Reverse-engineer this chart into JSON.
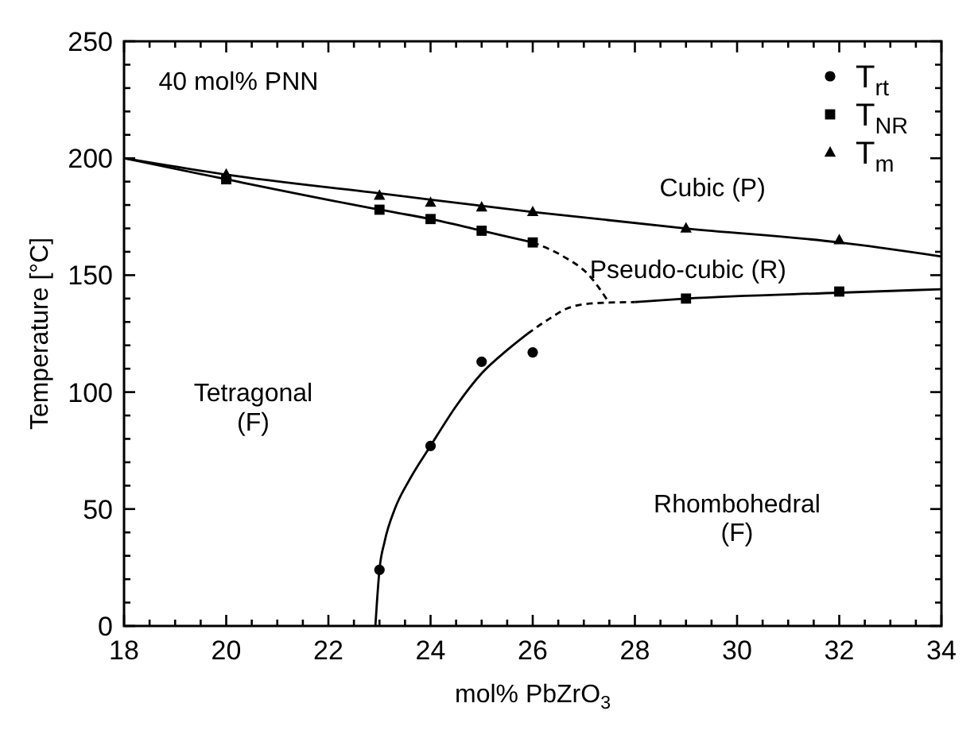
{
  "chart_data": {
    "type": "scatter",
    "xlabel": "mol% PbZrO$_{3}$",
    "ylabel": "Temperature [°C]",
    "xlim": [
      18,
      34
    ],
    "ylim": [
      0,
      250
    ],
    "xticks": [
      18,
      {
        "value": 18.5,
        "label": null
      },
      {
        "value": 19,
        "label": null
      },
      {
        "value": 19.5,
        "label": null
      },
      20,
      {
        "value": 20.5,
        "label": null
      },
      {
        "value": 21,
        "label": null
      },
      {
        "value": 21.5,
        "label": null
      },
      22,
      {
        "value": 22.5,
        "label": null
      },
      {
        "value": 23,
        "label": null
      },
      {
        "value": 23.5,
        "label": null
      },
      24,
      {
        "value": 24.5,
        "label": null
      },
      {
        "value": 25,
        "label": null
      },
      {
        "value": 25.5,
        "label": null
      },
      26,
      {
        "value": 26.5,
        "label": null
      },
      {
        "value": 27,
        "label": null
      },
      {
        "value": 27.5,
        "label": null
      },
      28,
      {
        "value": 28.5,
        "label": null
      },
      {
        "value": 29,
        "label": null
      },
      {
        "value": 29.5,
        "label": null
      },
      30,
      {
        "value": 30.5,
        "label": null
      },
      {
        "value": 31,
        "label": null
      },
      {
        "value": 31.5,
        "label": null
      },
      32,
      {
        "value": 32.5,
        "label": null
      },
      {
        "value": 33,
        "label": null
      },
      {
        "value": 33.5,
        "label": null
      },
      34
    ],
    "yticks": [
      0,
      {
        "value": 10,
        "label": null
      },
      {
        "value": 20,
        "label": null
      },
      {
        "value": 30,
        "label": null
      },
      {
        "value": 40,
        "label": null
      },
      50,
      {
        "value": 60,
        "label": null
      },
      {
        "value": 70,
        "label": null
      },
      {
        "value": 80,
        "label": null
      },
      {
        "value": 90,
        "label": null
      },
      100,
      {
        "value": 110,
        "label": null
      },
      {
        "value": 120,
        "label": null
      },
      {
        "value": 130,
        "label": null
      },
      {
        "value": 140,
        "label": null
      },
      150,
      {
        "value": 160,
        "label": null
      },
      {
        "value": 170,
        "label": null
      },
      {
        "value": 180,
        "label": null
      },
      {
        "value": 190,
        "label": null
      },
      200,
      {
        "value": 210,
        "label": null
      },
      {
        "value": 220,
        "label": null
      },
      {
        "value": 230,
        "label": null
      },
      {
        "value": 240,
        "label": null
      },
      250
    ],
    "grid": false,
    "legend": "top right",
    "series": [
      {
        "name": "T$_{rt}$",
        "marker": "circle",
        "color": "#000000",
        "x": [
          23,
          24,
          25,
          26
        ],
        "values": [
          24,
          77,
          113,
          117
        ]
      },
      {
        "name": "T$_{NR}$",
        "marker": "square",
        "color": "#000000",
        "x": [
          20,
          23,
          24,
          25,
          26,
          29,
          32
        ],
        "values": [
          191,
          178,
          174,
          169,
          164,
          140,
          143
        ]
      },
      {
        "name": "T$_{m}$",
        "marker": "triangle",
        "color": "#000000",
        "x": [
          20,
          23,
          24,
          25,
          26,
          29,
          32
        ],
        "values": [
          193,
          184,
          181,
          179,
          177,
          170,
          165
        ]
      },
      {
        "type": "line",
        "line_style": "solid",
        "color": "#000000",
        "x": [
          18,
          20,
          23,
          26,
          29,
          32,
          34
        ],
        "values": [
          200,
          193,
          185,
          177,
          170,
          164,
          158
        ]
      },
      {
        "type": "line",
        "line_style": "solid",
        "color": "#000000",
        "x": [
          18,
          20,
          23,
          24,
          25,
          26
        ],
        "values": [
          200,
          191,
          178,
          174,
          169,
          164
        ]
      },
      {
        "type": "line",
        "line_style": "dashed",
        "color": "#000000",
        "x": [
          26,
          26.6,
          27.1,
          27.5
        ],
        "values": [
          164,
          158,
          150,
          138
        ]
      },
      {
        "type": "line",
        "line_style": "solid",
        "color": "#000000",
        "x": [
          22.92,
          22.95,
          23,
          23.1,
          23.3,
          23.6,
          24,
          24.5,
          25,
          25.5,
          25.9
        ],
        "values": [
          0,
          10,
          24,
          36,
          50,
          63,
          77,
          94,
          108,
          118,
          125
        ]
      },
      {
        "type": "line",
        "line_style": "dashed",
        "color": "#000000",
        "x": [
          25.9,
          26.3,
          26.7,
          27.2,
          28
        ],
        "values": [
          125,
          131,
          136,
          138,
          138.5
        ]
      },
      {
        "type": "line",
        "line_style": "solid",
        "color": "#000000",
        "x": [
          28,
          29,
          32,
          34
        ],
        "values": [
          138.5,
          140,
          142.5,
          144
        ]
      }
    ],
    "annotations": [
      "40 mol% PNN",
      "Cubic (P)",
      "Pseudo-cubic (R)",
      "Tetragonal\n(F)",
      "Rhombohedral\n(F)"
    ]
  }
}
